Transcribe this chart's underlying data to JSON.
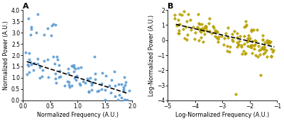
{
  "panel_A": {
    "title": "A",
    "xlabel": "Normalized Frequency (A.U.)",
    "ylabel": "Normalized Power (A.U.)",
    "xlim": [
      0,
      2
    ],
    "ylim": [
      0,
      4
    ],
    "xticks": [
      0,
      0.5,
      1.0,
      1.5,
      2.0
    ],
    "yticks": [
      0,
      0.5,
      1.0,
      1.5,
      2.0,
      2.5,
      3.0,
      3.5,
      4.0
    ],
    "scatter_color": "#5b9bd5",
    "marker": "o",
    "fit_x": [
      0.07,
      1.93
    ],
    "fit_y": [
      1.72,
      0.3
    ],
    "seed": 12,
    "n_points": 95
  },
  "panel_B": {
    "title": "B",
    "xlabel": "Log-Normalized Frequency (A.U.)",
    "ylabel": "Log-Normalized Power (A.U.)",
    "xlim": [
      -5,
      -1
    ],
    "ylim": [
      -4,
      2
    ],
    "xticks": [
      -5,
      -4,
      -3,
      -2,
      -1
    ],
    "yticks": [
      -4,
      -3,
      -2,
      -1,
      0,
      1,
      2
    ],
    "scatter_color": "#b8a000",
    "marker": "D",
    "fit_x": [
      -4.7,
      -1.1
    ],
    "fit_y": [
      1.05,
      -0.45
    ],
    "seed": 77,
    "n_points": 110
  },
  "bg_color": "#ffffff",
  "label_fontsize": 5.8,
  "title_fontsize": 8,
  "tick_fontsize": 5.5,
  "marker_size": 8,
  "marker_size_B": 7,
  "line_color": "black",
  "line_width": 1.2,
  "line_style": "--"
}
